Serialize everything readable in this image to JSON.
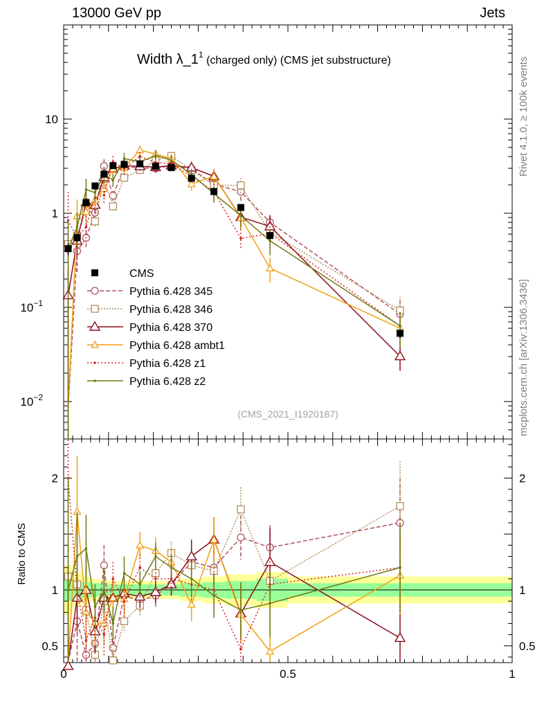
{
  "header": {
    "left": "13000 GeV pp",
    "right": "Jets"
  },
  "side": {
    "rivet": "Rivet 4.1.0, ≥ 100k events",
    "mcplots": "mcplots.cern.ch [arXiv:1306.3436]"
  },
  "chart_data": {
    "type": "scatter",
    "title_main": "Width λ_1",
    "title_sup": "1",
    "title_rest": "(charged only) (CMS jet substructure)",
    "watermark": "(CMS_2021_I1920187)",
    "xlabel": "",
    "ylabel_ratio": "Ratio to CMS",
    "xlim": [
      0,
      1
    ],
    "ylim_main_log": [
      0.004,
      100
    ],
    "ylim_ratio": [
      0.35,
      2.35
    ],
    "main_yticks": [
      {
        "v": 10,
        "base": "10",
        "sup": ""
      },
      {
        "v": 1,
        "base": "1",
        "sup": ""
      },
      {
        "v": 0.1,
        "base": "10",
        "sup": "−1"
      },
      {
        "v": 0.01,
        "base": "10",
        "sup": "−2"
      }
    ],
    "ratio_yticks": [
      {
        "v": 0.5,
        "label": "0.5"
      },
      {
        "v": 1,
        "label": "1"
      },
      {
        "v": 2,
        "label": "2"
      }
    ],
    "xticks": [
      {
        "v": 0,
        "label": "0"
      },
      {
        "v": 0.5,
        "label": "0.5"
      },
      {
        "v": 1,
        "label": "1"
      }
    ],
    "x": [
      0.01,
      0.03,
      0.05,
      0.07,
      0.09,
      0.11,
      0.135,
      0.17,
      0.205,
      0.24,
      0.285,
      0.335,
      0.395,
      0.46,
      0.75
    ],
    "xedges": [
      0,
      0.02,
      0.04,
      0.06,
      0.08,
      0.1,
      0.12,
      0.15,
      0.19,
      0.22,
      0.26,
      0.31,
      0.36,
      0.43,
      0.5,
      1.0
    ],
    "data": {
      "name": "CMS",
      "values": [
        0.42,
        0.55,
        1.3,
        1.95,
        2.6,
        3.2,
        3.3,
        3.35,
        3.15,
        3.05,
        2.35,
        1.7,
        1.15,
        0.58,
        0.053
      ],
      "errors": [
        0.06,
        0.06,
        0.1,
        0.12,
        0.15,
        0.15,
        0.15,
        0.15,
        0.15,
        0.15,
        0.12,
        0.1,
        0.08,
        0.05,
        0.006
      ],
      "band_inner": [
        0.1,
        0.08,
        0.07,
        0.06,
        0.06,
        0.05,
        0.05,
        0.05,
        0.05,
        0.05,
        0.06,
        0.07,
        0.08,
        0.1,
        0.06
      ],
      "band_outer": [
        0.22,
        0.15,
        0.12,
        0.1,
        0.09,
        0.08,
        0.08,
        0.08,
        0.08,
        0.08,
        0.1,
        0.12,
        0.14,
        0.16,
        0.12
      ]
    },
    "series": [
      {
        "name": "Pythia 6.428 345",
        "color": "#b05060",
        "dash": "6,3",
        "marker": "circle",
        "ratio": [
          0.0,
          0.72,
          0.42,
          0.52,
          1.22,
          0.48,
          0.95,
          0.9,
          0.95,
          1.05,
          1.25,
          1.2,
          1.47,
          1.38,
          1.6
        ],
        "rerr": [
          0.8,
          0.4,
          0.2,
          0.15,
          0.18,
          0.12,
          0.12,
          0.1,
          0.1,
          0.1,
          0.12,
          0.15,
          0.2,
          0.2,
          0.4
        ]
      },
      {
        "name": "Pythia 6.428 346",
        "color": "#b08f5a",
        "dash": "2,2",
        "marker": "square",
        "ratio": [
          1.12,
          1.05,
          0.82,
          0.42,
          0.9,
          0.37,
          0.72,
          0.86,
          1.15,
          1.33,
          1.22,
          1.17,
          1.72,
          1.08,
          1.75
        ],
        "rerr": [
          0.3,
          0.2,
          0.15,
          0.12,
          0.15,
          0.1,
          0.1,
          0.1,
          0.1,
          0.1,
          0.12,
          0.15,
          0.2,
          0.2,
          0.4
        ]
      },
      {
        "name": "Pythia 6.428 370",
        "color": "#8b0d1e",
        "dash": "",
        "marker": "triangle",
        "ratio": [
          0.32,
          0.93,
          1.0,
          0.63,
          0.93,
          0.93,
          0.97,
          0.94,
          0.98,
          1.05,
          1.3,
          1.45,
          0.79,
          1.25,
          0.57
        ],
        "rerr": [
          0.9,
          0.3,
          0.3,
          0.2,
          0.2,
          0.15,
          0.12,
          0.1,
          0.1,
          0.1,
          0.15,
          0.2,
          0.25,
          0.3,
          0.3
        ]
      },
      {
        "name": "Pythia 6.428 ambt1",
        "color": "#f0a010",
        "dash": "",
        "marker": "triangle-small",
        "ratio": [
          0.0,
          1.7,
          0.8,
          0.71,
          0.7,
          0.93,
          0.92,
          1.4,
          1.35,
          1.25,
          0.87,
          1.45,
          0.78,
          0.45,
          1.13
        ],
        "rerr": [
          0.9,
          0.5,
          0.3,
          0.2,
          0.2,
          0.15,
          0.15,
          0.12,
          0.12,
          0.12,
          0.15,
          0.2,
          0.25,
          0.3,
          0.35
        ]
      },
      {
        "name": "Pythia 6.428 z1",
        "color": "#d42020",
        "dash": "2,3",
        "marker": "dot",
        "ratio": [
          2.0,
          1.0,
          0.55,
          0.75,
          0.6,
          1.1,
          0.9,
          1.2,
          1.1,
          1.1,
          1.05,
          1.0,
          0.47,
          1.05,
          1.2
        ],
        "rerr": [
          1.0,
          0.4,
          0.3,
          0.2,
          0.2,
          0.15,
          0.15,
          0.12,
          0.12,
          0.12,
          0.15,
          0.2,
          0.25,
          0.3,
          0.4
        ]
      },
      {
        "name": "Pythia 6.428 z2",
        "color": "#6f7a10",
        "dash": "",
        "marker": "dot",
        "ratio": [
          1.0,
          1.3,
          1.37,
          0.85,
          1.0,
          0.7,
          1.15,
          1.05,
          1.3,
          1.2,
          1.1,
          0.95,
          0.82,
          0.88,
          1.2
        ],
        "rerr": [
          1.0,
          0.4,
          0.3,
          0.2,
          0.2,
          0.15,
          0.15,
          0.12,
          0.12,
          0.12,
          0.15,
          0.2,
          0.25,
          0.3,
          0.4
        ]
      }
    ]
  }
}
